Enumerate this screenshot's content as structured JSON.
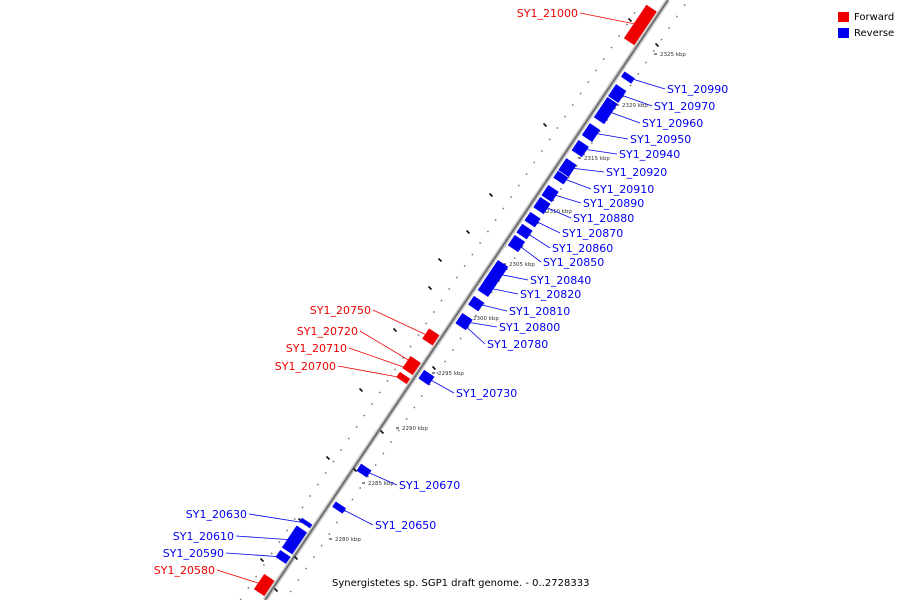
{
  "caption": "Synergistetes sp. SGP1 draft genome. - 0..2728333",
  "legend": {
    "forward_label": "Forward",
    "reverse_label": "Reverse",
    "forward_color": "#ee0000",
    "reverse_color": "#0000ee"
  },
  "ticks": [
    "2325 kbp",
    "2320 kbp",
    "2315 kbp",
    "2310 kbp",
    "2305 kbp",
    "2300 kbp",
    "2295 kbp",
    "2290 kbp",
    "2285 kbp",
    "2280 kbp"
  ],
  "genes": [
    {
      "name": "SY1_21000",
      "strand": "forward"
    },
    {
      "name": "SY1_20990",
      "strand": "reverse"
    },
    {
      "name": "SY1_20970",
      "strand": "reverse"
    },
    {
      "name": "SY1_20960",
      "strand": "reverse"
    },
    {
      "name": "SY1_20950",
      "strand": "reverse"
    },
    {
      "name": "SY1_20940",
      "strand": "reverse"
    },
    {
      "name": "SY1_20920",
      "strand": "reverse"
    },
    {
      "name": "SY1_20910",
      "strand": "reverse"
    },
    {
      "name": "SY1_20890",
      "strand": "reverse"
    },
    {
      "name": "SY1_20880",
      "strand": "reverse"
    },
    {
      "name": "SY1_20870",
      "strand": "reverse"
    },
    {
      "name": "SY1_20860",
      "strand": "reverse"
    },
    {
      "name": "SY1_20850",
      "strand": "reverse"
    },
    {
      "name": "SY1_20840",
      "strand": "reverse"
    },
    {
      "name": "SY1_20820",
      "strand": "reverse"
    },
    {
      "name": "SY1_20810",
      "strand": "reverse"
    },
    {
      "name": "SY1_20800",
      "strand": "reverse"
    },
    {
      "name": "SY1_20780",
      "strand": "reverse"
    },
    {
      "name": "SY1_20750",
      "strand": "forward"
    },
    {
      "name": "SY1_20720",
      "strand": "forward"
    },
    {
      "name": "SY1_20710",
      "strand": "forward"
    },
    {
      "name": "SY1_20700",
      "strand": "forward"
    },
    {
      "name": "SY1_20730",
      "strand": "reverse"
    },
    {
      "name": "SY1_20670",
      "strand": "reverse"
    },
    {
      "name": "SY1_20650",
      "strand": "reverse"
    },
    {
      "name": "SY1_20630",
      "strand": "reverse"
    },
    {
      "name": "SY1_20610",
      "strand": "reverse"
    },
    {
      "name": "SY1_20590",
      "strand": "reverse"
    },
    {
      "name": "SY1_20580",
      "strand": "forward"
    }
  ]
}
